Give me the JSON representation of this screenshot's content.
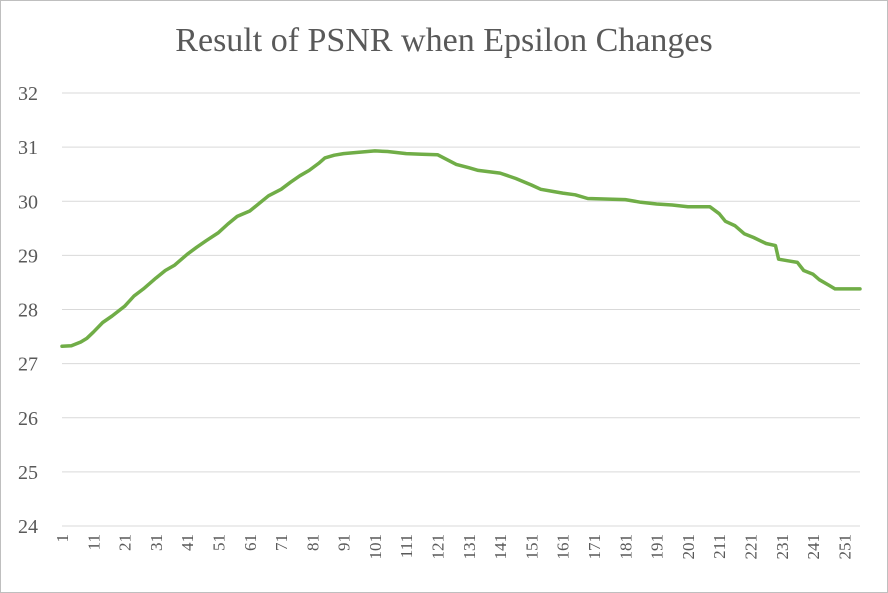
{
  "chart_data": {
    "type": "line",
    "title": "Result of PSNR when Epsilon Changes",
    "xlabel": "",
    "ylabel": "",
    "ylim": [
      24,
      32
    ],
    "yticks": [
      24,
      25,
      26,
      27,
      28,
      29,
      30,
      31,
      32
    ],
    "xlim": [
      1,
      256
    ],
    "xticks": [
      1,
      11,
      21,
      31,
      41,
      51,
      61,
      71,
      81,
      91,
      101,
      111,
      121,
      131,
      141,
      151,
      161,
      171,
      181,
      191,
      201,
      211,
      221,
      231,
      241,
      251
    ],
    "grid": true,
    "legend": "none",
    "series": [
      {
        "name": "PSNR",
        "color": "#70ad47",
        "points": [
          [
            1,
            27.32
          ],
          [
            4,
            27.33
          ],
          [
            7,
            27.4
          ],
          [
            9,
            27.47
          ],
          [
            11,
            27.58
          ],
          [
            14,
            27.76
          ],
          [
            17,
            27.88
          ],
          [
            21,
            28.06
          ],
          [
            24,
            28.25
          ],
          [
            27,
            28.38
          ],
          [
            31,
            28.58
          ],
          [
            34,
            28.72
          ],
          [
            37,
            28.82
          ],
          [
            41,
            29.02
          ],
          [
            44,
            29.15
          ],
          [
            47,
            29.27
          ],
          [
            51,
            29.42
          ],
          [
            54,
            29.58
          ],
          [
            57,
            29.72
          ],
          [
            61,
            29.82
          ],
          [
            64,
            29.96
          ],
          [
            67,
            30.1
          ],
          [
            71,
            30.22
          ],
          [
            74,
            30.35
          ],
          [
            77,
            30.47
          ],
          [
            80,
            30.57
          ],
          [
            83,
            30.7
          ],
          [
            85,
            30.8
          ],
          [
            88,
            30.85
          ],
          [
            91,
            30.88
          ],
          [
            95,
            30.9
          ],
          [
            101,
            30.93
          ],
          [
            105,
            30.92
          ],
          [
            111,
            30.88
          ],
          [
            116,
            30.87
          ],
          [
            121,
            30.86
          ],
          [
            124,
            30.77
          ],
          [
            127,
            30.68
          ],
          [
            131,
            30.62
          ],
          [
            134,
            30.57
          ],
          [
            141,
            30.52
          ],
          [
            146,
            30.42
          ],
          [
            151,
            30.3
          ],
          [
            154,
            30.22
          ],
          [
            158,
            30.18
          ],
          [
            161,
            30.15
          ],
          [
            165,
            30.12
          ],
          [
            169,
            30.05
          ],
          [
            181,
            30.03
          ],
          [
            186,
            29.98
          ],
          [
            191,
            29.95
          ],
          [
            196,
            29.93
          ],
          [
            201,
            29.9
          ],
          [
            208,
            29.9
          ],
          [
            211,
            29.77
          ],
          [
            213,
            29.63
          ],
          [
            216,
            29.55
          ],
          [
            219,
            29.4
          ],
          [
            222,
            29.33
          ],
          [
            226,
            29.22
          ],
          [
            229,
            29.18
          ],
          [
            230,
            28.93
          ],
          [
            233,
            28.9
          ],
          [
            236,
            28.87
          ],
          [
            238,
            28.72
          ],
          [
            241,
            28.65
          ],
          [
            243,
            28.55
          ],
          [
            246,
            28.45
          ],
          [
            248,
            28.38
          ],
          [
            256,
            28.38
          ]
        ]
      }
    ]
  }
}
